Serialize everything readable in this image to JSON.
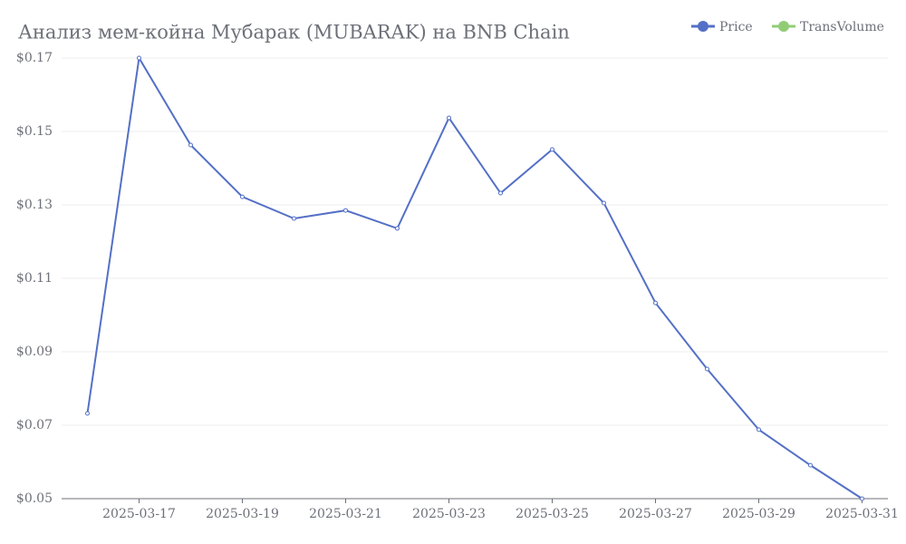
{
  "chart_data": {
    "type": "line",
    "title": "Анализ мем-койна Мубарак (MUBARAK) на BNB Chain",
    "categories": [
      null,
      "2025-03-17",
      null,
      "2025-03-19",
      null,
      "2025-03-21",
      null,
      "2025-03-23",
      null,
      "2025-03-25",
      null,
      "2025-03-27",
      null,
      "2025-03-29",
      null,
      "2025-03-31"
    ],
    "series": [
      {
        "name": "Price",
        "color": "#5470c6",
        "values": [
          0.0732,
          0.17,
          0.1463,
          0.1322,
          0.1263,
          0.1285,
          0.1236,
          0.1537,
          0.1332,
          0.1451,
          0.1305,
          0.1033,
          0.0853,
          0.0688,
          0.0591,
          0.05
        ]
      },
      {
        "name": "TransVolume",
        "color": "#91cc75",
        "values": [
          null,
          null,
          null,
          null,
          null,
          null,
          null,
          null,
          null,
          null,
          null,
          null,
          null,
          null,
          null,
          null
        ]
      }
    ],
    "ylim": [
      0.05,
      0.17
    ],
    "yticks": [
      {
        "value": 0.05,
        "label": "$0.05"
      },
      {
        "value": 0.07,
        "label": "$0.07"
      },
      {
        "value": 0.09,
        "label": "$0.09"
      },
      {
        "value": 0.11,
        "label": "$0.11"
      },
      {
        "value": 0.13,
        "label": "$0.13"
      },
      {
        "value": 0.15,
        "label": "$0.15"
      },
      {
        "value": 0.17,
        "label": "$0.17"
      }
    ],
    "grid": true,
    "legend": "top-right"
  }
}
